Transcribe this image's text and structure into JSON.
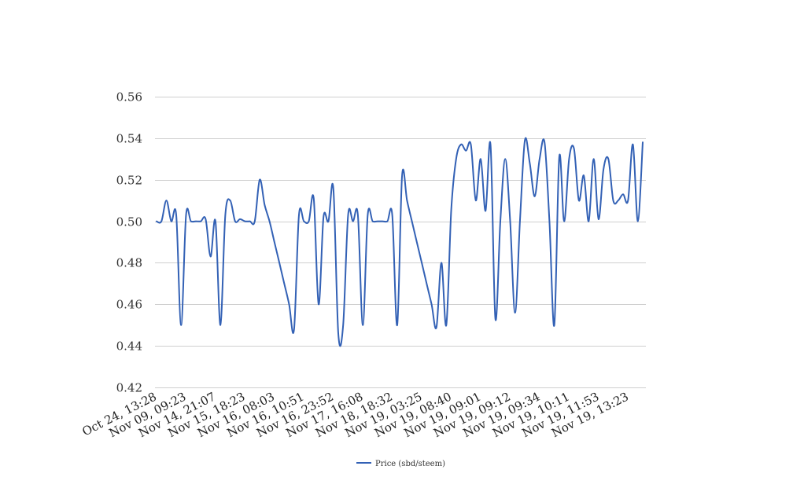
{
  "chart_data": {
    "type": "line",
    "title": "",
    "xlabel": "",
    "ylabel": "",
    "ylim": [
      0.42,
      0.56
    ],
    "yticks": [
      "0.56",
      "0.54",
      "0.52",
      "0.50",
      "0.48",
      "0.46",
      "0.44",
      "0.42"
    ],
    "ytick_values": [
      0.56,
      0.54,
      0.52,
      0.5,
      0.48,
      0.46,
      0.44,
      0.42
    ],
    "xtick_labels": [
      "Oct 24, 13:28",
      "Nov 09, 09:23",
      "Nov 14, 21:07",
      "Nov 15, 18:23",
      "Nov 16, 08:03",
      "Nov 16, 10:51",
      "Nov 16, 23:52",
      "Nov 17, 16:08",
      "Nov 18, 18:32",
      "Nov 19, 03:25",
      "Nov 19, 08:40",
      "Nov 19, 09:01",
      "Nov 19, 09:12",
      "Nov 19, 09:34",
      "Nov 19, 10:11",
      "Nov 19, 11:53",
      "Nov 19, 13:23"
    ],
    "grid": true,
    "legend_position": "bottom",
    "colors": {
      "series": "#3361b5",
      "grid": "#cfcfcf"
    },
    "series": [
      {
        "name": "Price (sbd/steem)",
        "values": [
          0.5,
          0.5,
          0.51,
          0.5,
          0.503,
          0.45,
          0.503,
          0.5,
          0.5,
          0.5,
          0.501,
          0.483,
          0.5,
          0.45,
          0.503,
          0.51,
          0.5,
          0.501,
          0.5,
          0.5,
          0.5,
          0.52,
          0.508,
          0.5,
          0.49,
          0.48,
          0.47,
          0.46,
          0.448,
          0.503,
          0.5,
          0.5,
          0.511,
          0.46,
          0.502,
          0.5,
          0.516,
          0.446,
          0.45,
          0.503,
          0.5,
          0.503,
          0.45,
          0.503,
          0.5,
          0.5,
          0.5,
          0.5,
          0.503,
          0.45,
          0.522,
          0.51,
          0.5,
          0.49,
          0.48,
          0.47,
          0.46,
          0.449,
          0.48,
          0.45,
          0.505,
          0.53,
          0.537,
          0.534,
          0.537,
          0.51,
          0.53,
          0.505,
          0.537,
          0.453,
          0.5,
          0.53,
          0.5,
          0.456,
          0.5,
          0.539,
          0.528,
          0.512,
          0.53,
          0.538,
          0.5,
          0.45,
          0.531,
          0.5,
          0.53,
          0.535,
          0.51,
          0.522,
          0.5,
          0.53,
          0.501,
          0.525,
          0.53,
          0.51,
          0.51,
          0.513,
          0.51,
          0.537,
          0.5,
          0.538
        ]
      }
    ]
  }
}
